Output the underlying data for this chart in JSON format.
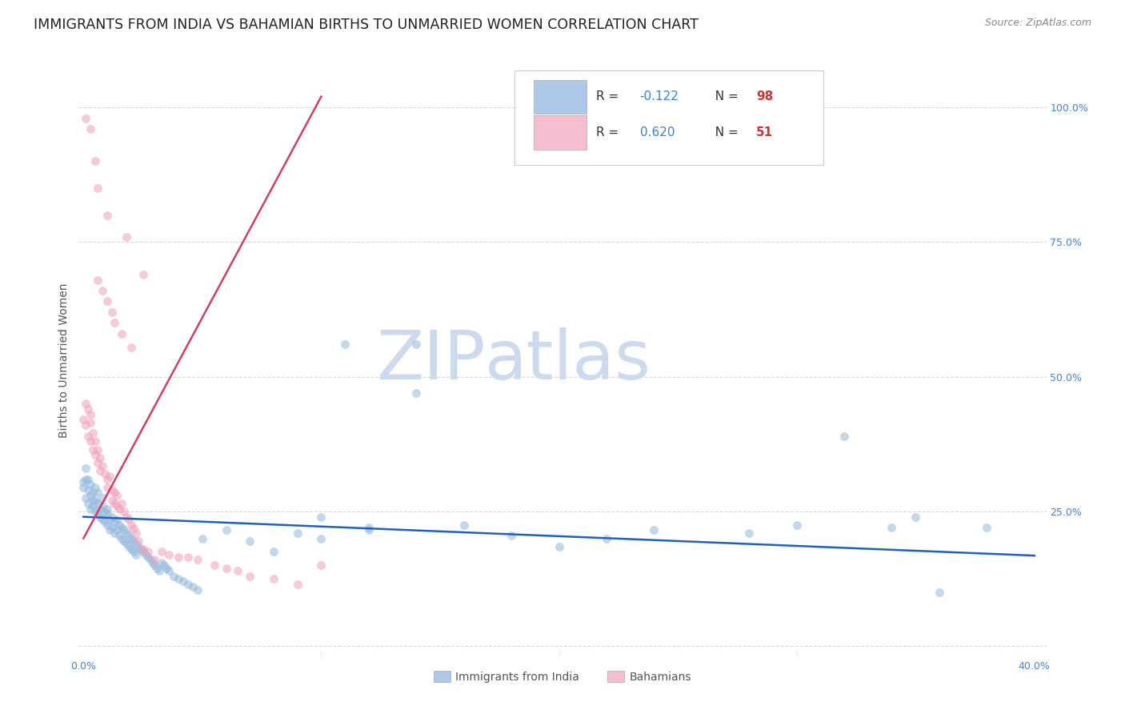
{
  "title": "IMMIGRANTS FROM INDIA VS BAHAMIAN BIRTHS TO UNMARRIED WOMEN CORRELATION CHART",
  "source": "Source: ZipAtlas.com",
  "ylabel": "Births to Unmarried Women",
  "legend_entries": [
    {
      "color": "#adc8e8",
      "R": "-0.122",
      "N": "98"
    },
    {
      "color": "#f5bdd0",
      "R": "0.620",
      "N": "51"
    }
  ],
  "legend_labels": [
    "Immigrants from India",
    "Bahamians"
  ],
  "blue_dot_color": "#93b8dc",
  "pink_dot_color": "#f0a0bb",
  "blue_line_color": "#2060c0",
  "pink_line_color": "#d04060",
  "watermark_zip": "ZIP",
  "watermark_atlas": "atlas",
  "watermark_color": "#cdd9ec",
  "background_color": "#ffffff",
  "grid_color": "#d8d8d8",
  "title_fontsize": 12.5,
  "axis_label_fontsize": 10,
  "tick_label_fontsize": 9,
  "source_fontsize": 9,
  "legend_fontsize": 11,
  "dot_size": 55,
  "dot_alpha": 0.55,
  "blue_scatter_x": [
    0.0,
    0.0,
    0.001,
    0.001,
    0.001,
    0.002,
    0.002,
    0.002,
    0.003,
    0.003,
    0.003,
    0.004,
    0.004,
    0.004,
    0.005,
    0.005,
    0.005,
    0.006,
    0.006,
    0.006,
    0.007,
    0.007,
    0.008,
    0.008,
    0.008,
    0.009,
    0.009,
    0.01,
    0.01,
    0.01,
    0.011,
    0.011,
    0.012,
    0.012,
    0.013,
    0.013,
    0.014,
    0.014,
    0.015,
    0.015,
    0.016,
    0.016,
    0.017,
    0.017,
    0.018,
    0.018,
    0.019,
    0.019,
    0.02,
    0.02,
    0.021,
    0.021,
    0.022,
    0.022,
    0.023,
    0.024,
    0.025,
    0.026,
    0.027,
    0.028,
    0.029,
    0.03,
    0.031,
    0.032,
    0.033,
    0.034,
    0.035,
    0.036,
    0.038,
    0.04,
    0.042,
    0.044,
    0.046,
    0.048,
    0.05,
    0.06,
    0.07,
    0.08,
    0.09,
    0.1,
    0.11,
    0.12,
    0.14,
    0.16,
    0.18,
    0.2,
    0.22,
    0.24,
    0.28,
    0.3,
    0.32,
    0.34,
    0.36,
    0.38,
    0.1,
    0.12,
    0.14,
    0.35
  ],
  "blue_scatter_y": [
    0.305,
    0.295,
    0.31,
    0.275,
    0.33,
    0.29,
    0.265,
    0.31,
    0.28,
    0.255,
    0.3,
    0.27,
    0.285,
    0.26,
    0.27,
    0.25,
    0.295,
    0.265,
    0.245,
    0.285,
    0.255,
    0.24,
    0.26,
    0.235,
    0.275,
    0.25,
    0.23,
    0.255,
    0.225,
    0.245,
    0.235,
    0.215,
    0.24,
    0.22,
    0.23,
    0.21,
    0.235,
    0.215,
    0.225,
    0.205,
    0.22,
    0.2,
    0.215,
    0.195,
    0.21,
    0.19,
    0.205,
    0.185,
    0.2,
    0.18,
    0.195,
    0.175,
    0.19,
    0.17,
    0.185,
    0.18,
    0.175,
    0.17,
    0.165,
    0.16,
    0.155,
    0.15,
    0.145,
    0.14,
    0.155,
    0.15,
    0.145,
    0.14,
    0.13,
    0.125,
    0.12,
    0.115,
    0.11,
    0.105,
    0.2,
    0.215,
    0.195,
    0.175,
    0.21,
    0.2,
    0.56,
    0.215,
    0.47,
    0.225,
    0.205,
    0.185,
    0.2,
    0.215,
    0.21,
    0.225,
    0.39,
    0.22,
    0.1,
    0.22,
    0.24,
    0.22,
    0.56,
    0.24
  ],
  "pink_scatter_x": [
    0.0,
    0.001,
    0.001,
    0.002,
    0.002,
    0.003,
    0.003,
    0.003,
    0.004,
    0.004,
    0.005,
    0.005,
    0.006,
    0.006,
    0.007,
    0.007,
    0.008,
    0.009,
    0.01,
    0.01,
    0.011,
    0.012,
    0.012,
    0.013,
    0.013,
    0.014,
    0.014,
    0.015,
    0.016,
    0.017,
    0.018,
    0.019,
    0.02,
    0.021,
    0.022,
    0.023,
    0.025,
    0.027,
    0.03,
    0.033,
    0.036,
    0.04,
    0.044,
    0.048,
    0.055,
    0.06,
    0.065,
    0.07,
    0.08,
    0.09,
    0.1
  ],
  "pink_scatter_y": [
    0.42,
    0.45,
    0.41,
    0.44,
    0.39,
    0.415,
    0.38,
    0.43,
    0.395,
    0.365,
    0.38,
    0.355,
    0.365,
    0.34,
    0.35,
    0.325,
    0.335,
    0.32,
    0.31,
    0.295,
    0.315,
    0.27,
    0.29,
    0.265,
    0.285,
    0.26,
    0.28,
    0.255,
    0.265,
    0.25,
    0.24,
    0.235,
    0.225,
    0.218,
    0.21,
    0.195,
    0.18,
    0.175,
    0.16,
    0.175,
    0.17,
    0.165,
    0.165,
    0.16,
    0.15,
    0.145,
    0.14,
    0.13,
    0.125,
    0.115,
    0.15
  ],
  "pink_outliers_x": [
    0.001,
    0.003,
    0.005,
    0.006,
    0.01,
    0.018,
    0.025
  ],
  "pink_outliers_y": [
    0.98,
    0.96,
    0.9,
    0.85,
    0.8,
    0.76,
    0.69
  ],
  "pink_mid_x": [
    0.006,
    0.008,
    0.01,
    0.012,
    0.013,
    0.016,
    0.02
  ],
  "pink_mid_y": [
    0.68,
    0.66,
    0.64,
    0.62,
    0.6,
    0.58,
    0.555
  ],
  "blue_line_x": [
    0.0,
    0.4
  ],
  "blue_line_y": [
    0.24,
    0.168
  ],
  "pink_line_x": [
    0.0,
    0.1
  ],
  "pink_line_y": [
    0.2,
    1.02
  ],
  "xlim": [
    -0.002,
    0.405
  ],
  "ylim": [
    -0.02,
    1.08
  ],
  "ytick_positions": [
    0.0,
    0.25,
    0.5,
    0.75,
    1.0
  ],
  "ytick_labels_right": [
    "",
    "25.0%",
    "50.0%",
    "75.0%",
    "100.0%"
  ],
  "xtick_positions": [
    0.0,
    0.4
  ],
  "xtick_labels": [
    "0.0%",
    "40.0%"
  ],
  "R_N_color": "#4080cc",
  "N_val_color": "#cc3333"
}
